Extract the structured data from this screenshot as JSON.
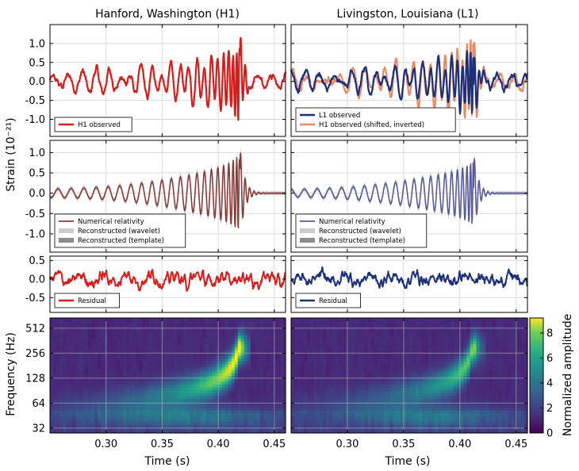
{
  "figure": {
    "column_titles": [
      "Hanford, Washington (H1)",
      "Livingston, Louisiana (L1)"
    ],
    "strain_label": "Strain (10⁻²¹)",
    "frequency_label": "Frequency (Hz)",
    "time_label": "Time (s)",
    "colorbar_label": "Normalized amplitude"
  },
  "colors": {
    "h1": "#d81b1b",
    "h1_shifted": "#e88a64",
    "l1": "#1b2f7a",
    "nr_h1": "#8b3a3a",
    "nr_l1": "#5a5a9a",
    "wavelet_band": "#cccccc",
    "template_band": "#8c8c8c"
  },
  "chart_data": [
    {
      "id": "h1-observed",
      "type": "line",
      "column": 0,
      "row": 0,
      "x_ticks": [
        0.3,
        0.35,
        0.4,
        0.45
      ],
      "y_tick_labels": [
        "1.0",
        "0.5",
        "0.0",
        "-0.5",
        "-1.0"
      ],
      "y_ticks": [
        1.0,
        0.5,
        0.0,
        -0.5,
        -1.0
      ],
      "ylim": [
        -1.45,
        1.5
      ],
      "xlim": [
        0.25,
        0.46
      ],
      "legend": [
        "H1 observed"
      ],
      "series": [
        {
          "name": "H1 observed",
          "color": "#d81b1b",
          "kind": "chirp_noisy",
          "peak_time": 0.42,
          "peak_strain": 1.0
        }
      ]
    },
    {
      "id": "l1-observed",
      "type": "line",
      "column": 1,
      "row": 0,
      "x_ticks": [
        0.3,
        0.35,
        0.4,
        0.45
      ],
      "y_tick_labels": [],
      "y_ticks": [
        1.0,
        0.5,
        0.0,
        -0.5,
        -1.0
      ],
      "ylim": [
        -1.45,
        1.5
      ],
      "xlim": [
        0.25,
        0.46
      ],
      "legend": [
        "L1 observed",
        "H1 observed (shifted, inverted)"
      ],
      "series": [
        {
          "name": "H1 observed (shifted, inverted)",
          "color": "#e88a64",
          "kind": "chirp_noisy",
          "peak_time": 0.413,
          "peak_strain": 1.1
        },
        {
          "name": "L1 observed",
          "color": "#1b2f7a",
          "kind": "chirp_noisy",
          "peak_time": 0.413,
          "peak_strain": 0.85
        }
      ]
    },
    {
      "id": "h1-reconstructed",
      "type": "line",
      "column": 0,
      "row": 1,
      "x_ticks": [
        0.3,
        0.35,
        0.4,
        0.45
      ],
      "y_tick_labels": [
        "1.0",
        "0.5",
        "0.0",
        "-0.5",
        "-1.0"
      ],
      "y_ticks": [
        1.0,
        0.5,
        0.0,
        -0.5,
        -1.0
      ],
      "ylim": [
        -1.45,
        1.3
      ],
      "xlim": [
        0.25,
        0.46
      ],
      "legend": [
        "Numerical relativity",
        "Reconstructed (wavelet)",
        "Reconstructed (template)"
      ],
      "series": [
        {
          "name": "Numerical relativity",
          "color": "#8b3a3a",
          "kind": "chirp",
          "peak_time": 0.42,
          "peak_strain": 1.0
        }
      ]
    },
    {
      "id": "l1-reconstructed",
      "type": "line",
      "column": 1,
      "row": 1,
      "x_ticks": [
        0.3,
        0.35,
        0.4,
        0.45
      ],
      "y_tick_labels": [],
      "y_ticks": [
        1.0,
        0.5,
        0.0,
        -0.5,
        -1.0
      ],
      "ylim": [
        -1.45,
        1.3
      ],
      "xlim": [
        0.25,
        0.46
      ],
      "legend": [
        "Numerical relativity",
        "Reconstructed (wavelet)",
        "Reconstructed (template)"
      ],
      "series": [
        {
          "name": "Numerical relativity",
          "color": "#5a5a9a",
          "kind": "chirp",
          "peak_time": 0.413,
          "peak_strain": 0.85
        }
      ]
    },
    {
      "id": "h1-residual",
      "type": "line",
      "column": 0,
      "row": 2,
      "x_ticks": [
        0.3,
        0.35,
        0.4,
        0.45
      ],
      "y_tick_labels": [
        "0.5",
        "0.0",
        "-0.5"
      ],
      "y_ticks": [
        0.5,
        0.0,
        -0.5
      ],
      "ylim": [
        -0.9,
        0.62
      ],
      "xlim": [
        0.25,
        0.46
      ],
      "legend": [
        "Residual"
      ],
      "series": [
        {
          "name": "Residual",
          "color": "#d81b1b",
          "kind": "noise",
          "amplitude": 0.3
        }
      ]
    },
    {
      "id": "l1-residual",
      "type": "line",
      "column": 1,
      "row": 2,
      "x_ticks": [
        0.3,
        0.35,
        0.4,
        0.45
      ],
      "y_tick_labels": [],
      "y_ticks": [
        0.5,
        0.0,
        -0.5
      ],
      "ylim": [
        -0.9,
        0.62
      ],
      "xlim": [
        0.25,
        0.46
      ],
      "legend": [
        "Residual"
      ],
      "series": [
        {
          "name": "Residual",
          "color": "#1b2f7a",
          "kind": "noise",
          "amplitude": 0.28
        }
      ]
    },
    {
      "id": "h1-spectrogram",
      "type": "heatmap",
      "column": 0,
      "row": 3,
      "x_tick_labels": [
        "0.30",
        "0.35",
        "0.40",
        "0.45"
      ],
      "x_ticks": [
        0.3,
        0.35,
        0.4,
        0.45
      ],
      "xlim": [
        0.25,
        0.46
      ],
      "y_tick_labels": [
        "512",
        "256",
        "128",
        "64",
        "32"
      ],
      "y_ticks": [
        512,
        256,
        128,
        64,
        32
      ],
      "y_scale": "log2",
      "ylim": [
        28,
        680
      ],
      "value_range": [
        0,
        9.2
      ],
      "chirp_peak_time": 0.42,
      "chirp_peak_amplitude": 9.0
    },
    {
      "id": "l1-spectrogram",
      "type": "heatmap",
      "column": 1,
      "row": 3,
      "x_tick_labels": [
        "0.30",
        "0.35",
        "0.40",
        "0.45"
      ],
      "x_ticks": [
        0.3,
        0.35,
        0.4,
        0.45
      ],
      "xlim": [
        0.25,
        0.46
      ],
      "y_tick_labels": [],
      "y_ticks": [
        512,
        256,
        128,
        64,
        32
      ],
      "y_scale": "log2",
      "ylim": [
        28,
        680
      ],
      "value_range": [
        0,
        9.2
      ],
      "chirp_peak_time": 0.413,
      "chirp_peak_amplitude": 6.5
    }
  ],
  "colorbar": {
    "ticks": [
      0,
      2,
      4,
      6,
      8
    ],
    "tick_labels": [
      "0",
      "2",
      "4",
      "6",
      "8"
    ],
    "range": [
      0,
      9.2
    ]
  }
}
